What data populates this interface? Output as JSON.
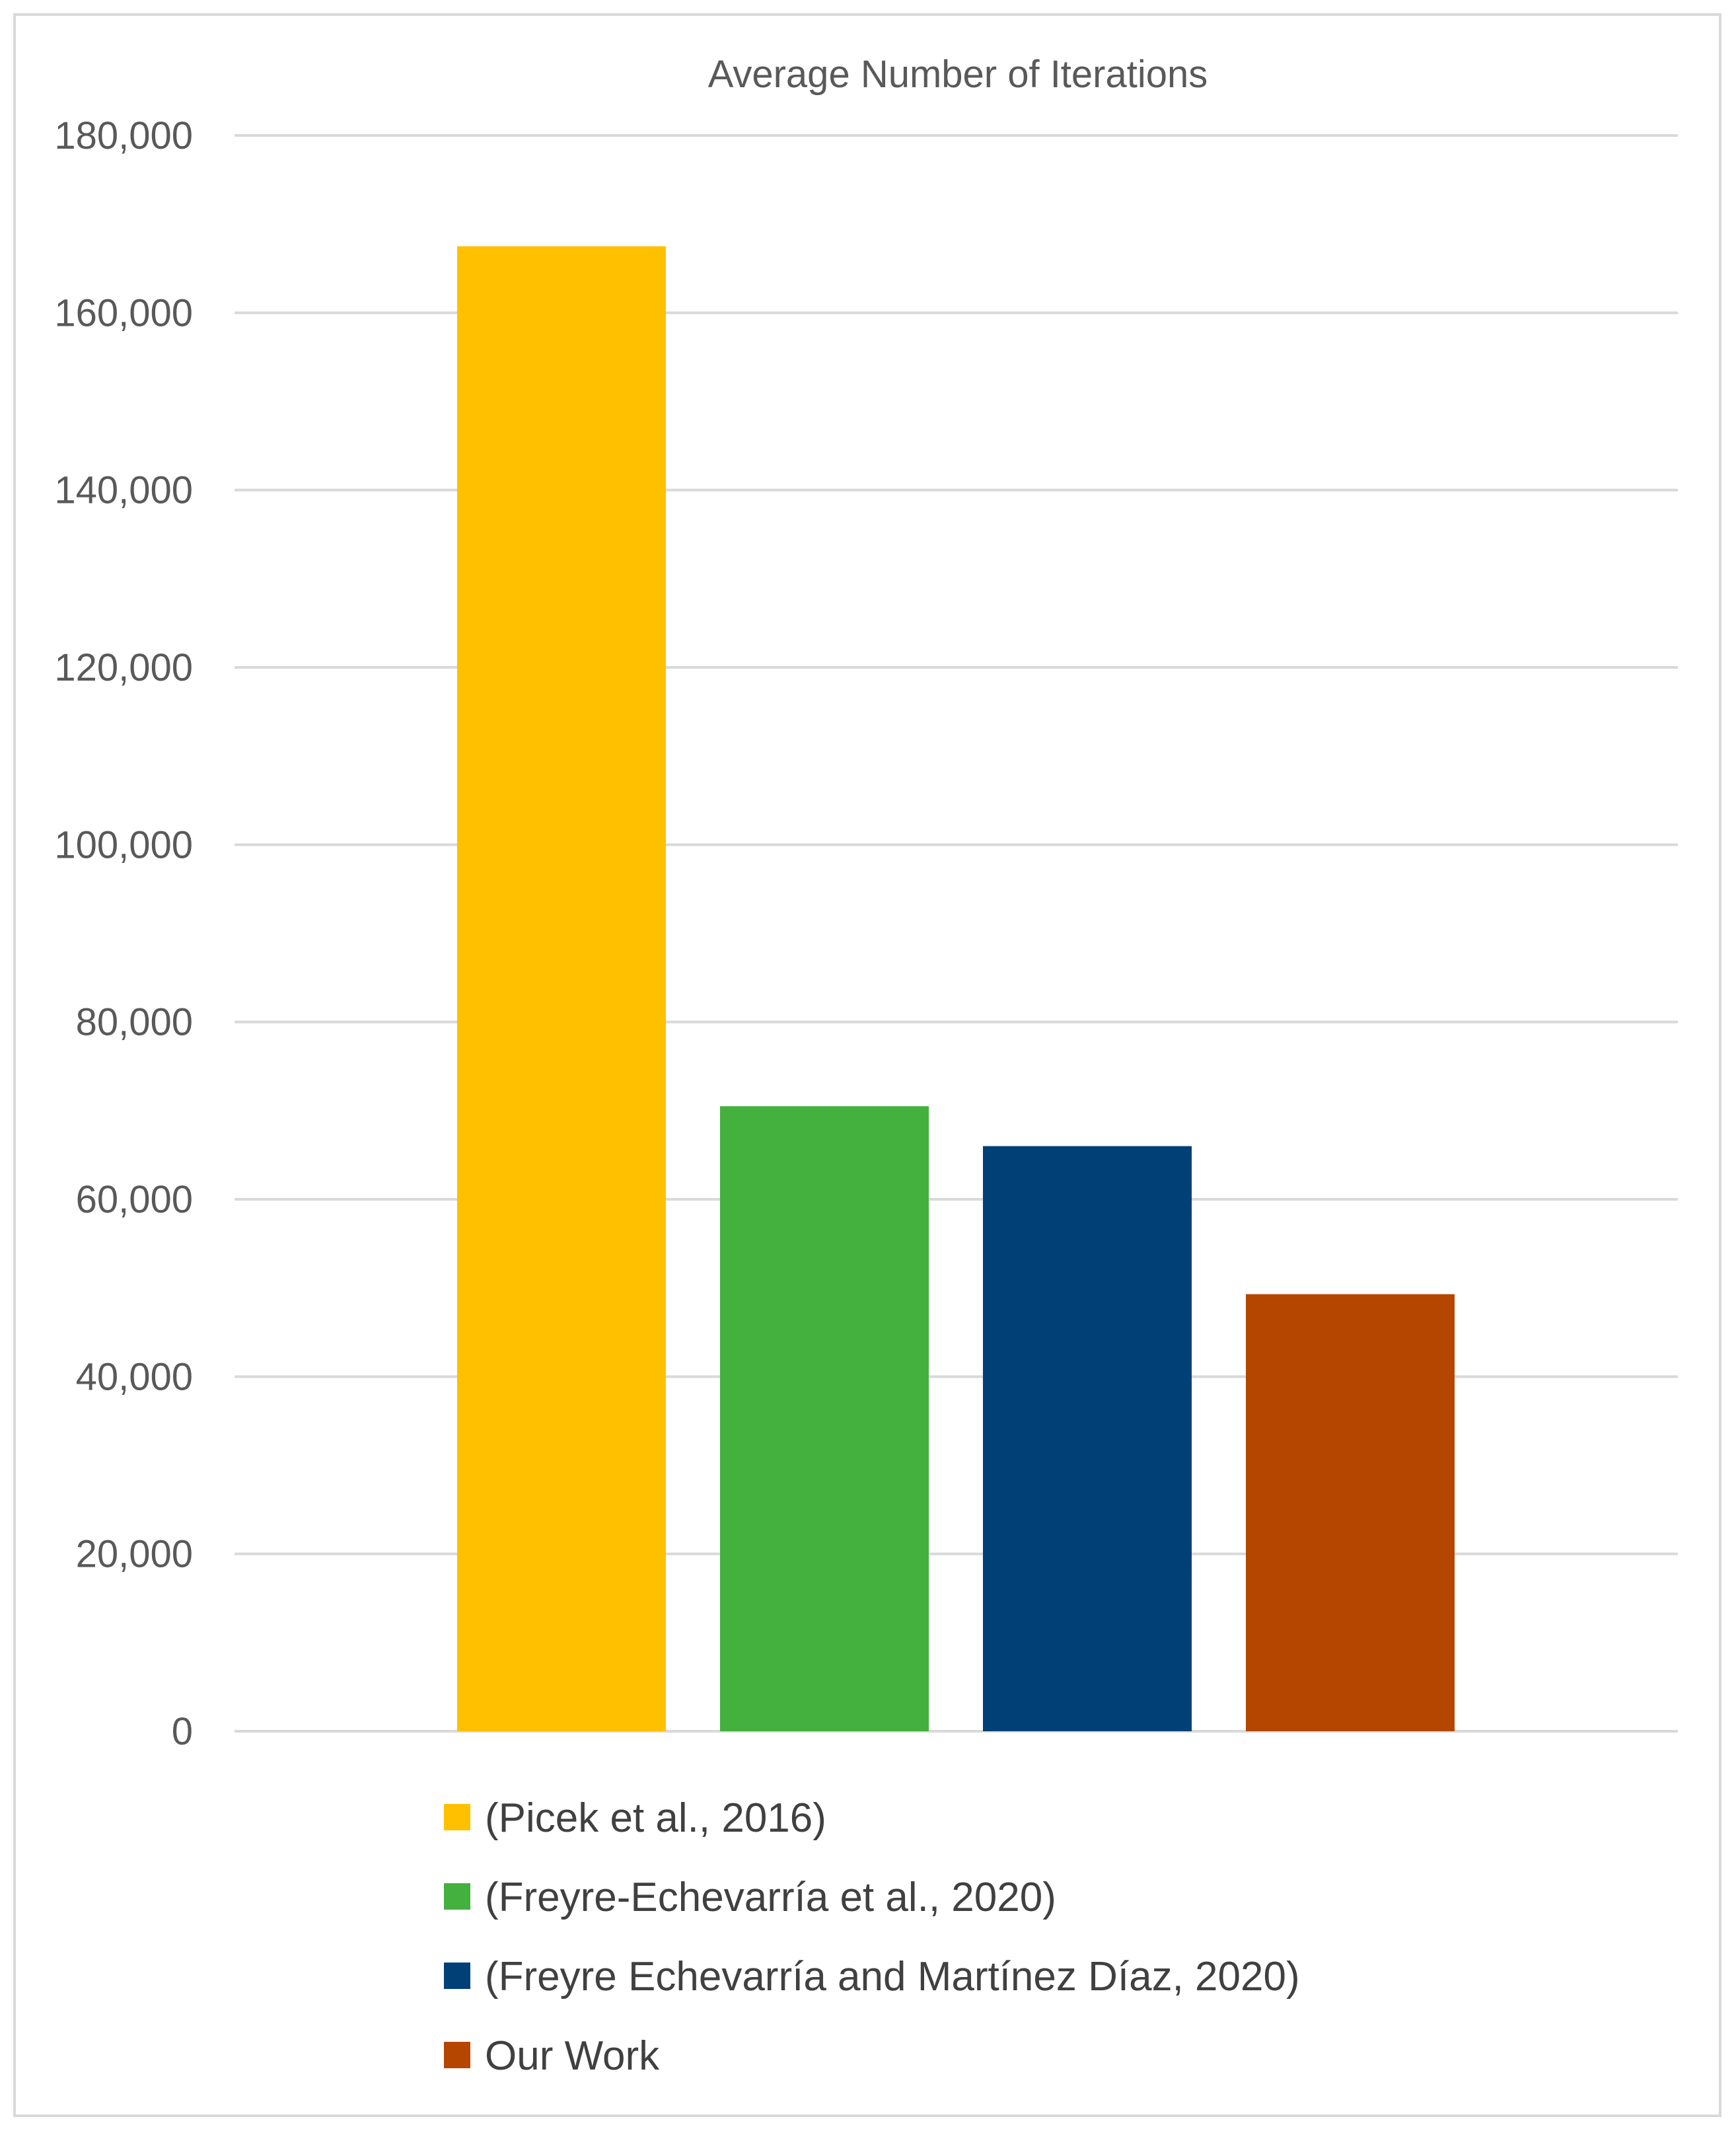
{
  "chart_data": {
    "type": "bar",
    "title": "Average Number of Iterations",
    "xlabel": "",
    "ylabel": "",
    "ylim": [
      0,
      180000
    ],
    "y_ticks": [
      0,
      20000,
      40000,
      60000,
      80000,
      100000,
      120000,
      140000,
      160000,
      180000
    ],
    "y_tick_labels": [
      "0",
      "20,000",
      "40,000",
      "60,000",
      "80,000",
      "100,000",
      "120,000",
      "140,000",
      "160,000",
      "180,000"
    ],
    "grid": true,
    "legend_position": "bottom",
    "series": [
      {
        "name": "(Picek et al., 2016)",
        "value": 167500,
        "color": "#FFC000"
      },
      {
        "name": "(Freyre-Echevarría et al., 2020)",
        "value": 70500,
        "color": "#44B03E"
      },
      {
        "name": "(Freyre Echevarría and Martínez Díaz, 2020)",
        "value": 66000,
        "color": "#004077"
      },
      {
        "name": "Our Work",
        "value": 49300,
        "color": "#B54600"
      }
    ]
  }
}
